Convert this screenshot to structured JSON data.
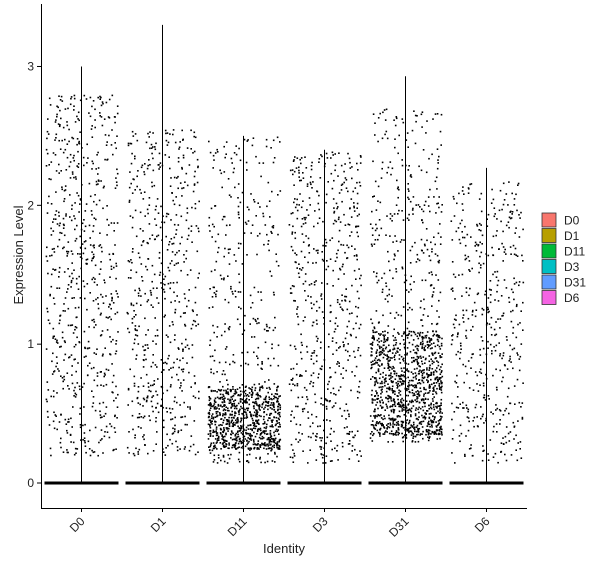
{
  "chart_data": {
    "type": "scatter",
    "subtype": "violin-jitter",
    "title": "",
    "xlabel": "Identity",
    "ylabel": "Expression Level",
    "categories": [
      "D0",
      "D1",
      "D11",
      "D3",
      "D31",
      "D6"
    ],
    "ylim": [
      -0.18,
      3.45
    ],
    "yticks": [
      0,
      1,
      2,
      3
    ],
    "grid": false,
    "legend": {
      "placement": "right",
      "entries": [
        "D0",
        "D1",
        "D11",
        "D3",
        "D31",
        "D6"
      ],
      "colors": [
        "#F8766D",
        "#B79F00",
        "#00BA38",
        "#00BFC4",
        "#619CFF",
        "#F564E3"
      ]
    },
    "series": [
      {
        "name": "D0",
        "max": 3.0,
        "nonzero_range": [
          0.2,
          2.8
        ],
        "density": "uniform",
        "zero_band": true
      },
      {
        "name": "D1",
        "max": 3.3,
        "nonzero_range": [
          0.2,
          2.55
        ],
        "density": "uniform",
        "zero_band": true
      },
      {
        "name": "D11",
        "max": 2.5,
        "nonzero_range": [
          0.15,
          2.5
        ],
        "density": "concentrated 0.25-0.7",
        "zero_band": true
      },
      {
        "name": "D3",
        "max": 2.4,
        "nonzero_range": [
          0.15,
          2.4
        ],
        "density": "uniform",
        "zero_band": true
      },
      {
        "name": "D31",
        "max": 2.93,
        "nonzero_range": [
          0.3,
          2.7
        ],
        "density": "concentrated 0.35-1.1",
        "zero_band": true
      },
      {
        "name": "D6",
        "max": 2.27,
        "nonzero_range": [
          0.15,
          2.2
        ],
        "density": "uniform",
        "zero_band": true
      }
    ],
    "point_color": "#000000"
  }
}
